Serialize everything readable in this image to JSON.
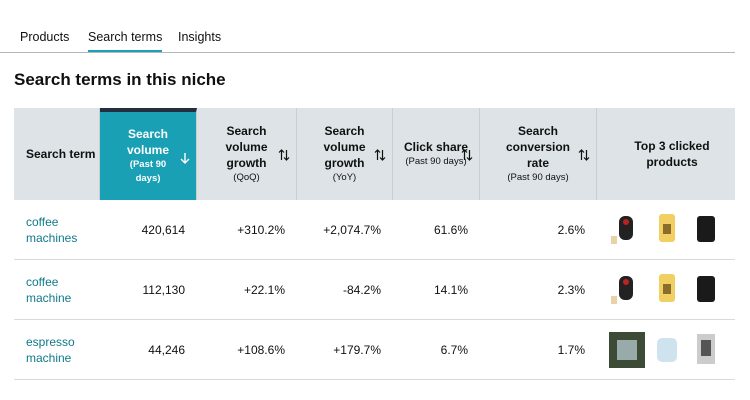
{
  "tabs": {
    "items": [
      "Products",
      "Search terms",
      "Insights"
    ],
    "active": 1
  },
  "heading": "Search terms in this niche",
  "table": {
    "sorted_column": 1,
    "columns": [
      {
        "title": "Search term"
      },
      {
        "title": "Search volume",
        "sub": "(Past 90 days)"
      },
      {
        "title": "Search volume growth",
        "sub": "(QoQ)"
      },
      {
        "title": "Search volume growth",
        "sub": "(YoY)"
      },
      {
        "title": "Click share",
        "sub": "(Past 90 days)"
      },
      {
        "title": "Search conversion rate",
        "sub": "(Past 90 days)"
      },
      {
        "title": "Top 3 clicked products"
      }
    ],
    "rows": [
      [
        "coffee machines",
        "420,614",
        "+310.2%",
        "+2,074.7%",
        "61.6%",
        "2.6%"
      ],
      [
        "coffee machine",
        "112,130",
        "+22.1%",
        "-84.2%",
        "14.1%",
        "2.3%"
      ],
      [
        "espresso machine",
        "44,246",
        "+108.6%",
        "+179.7%",
        "6.7%",
        "1.7%"
      ]
    ]
  }
}
